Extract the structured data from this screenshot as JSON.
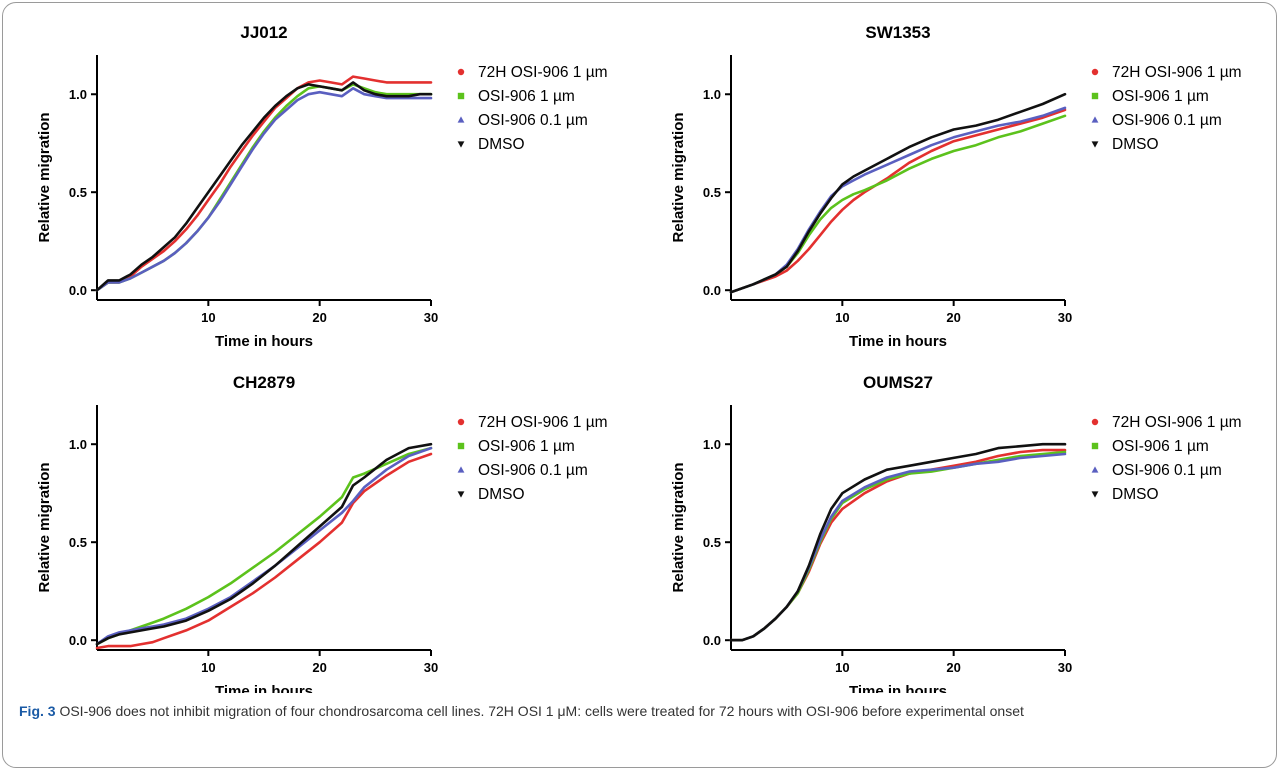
{
  "chart_data": [
    {
      "type": "line",
      "title": "JJ012",
      "xlabel": "Time in hours",
      "ylabel": "Relative migration",
      "xlim": [
        0,
        30
      ],
      "ylim": [
        -0.05,
        1.2
      ],
      "xticks": [
        10,
        20,
        30
      ],
      "xtick_labels": [
        "10",
        "20",
        "30"
      ],
      "yticks": [
        0.0,
        0.5,
        1.0
      ],
      "ytick_labels": [
        "0.0",
        "0.5",
        "1.0"
      ],
      "grid": false,
      "legend": "right",
      "series": [
        {
          "name": "72H OSI-906 1 µm",
          "color": "#e3302f",
          "marker": "circle",
          "x": [
            0,
            1,
            2,
            3,
            4,
            5,
            6,
            7,
            8,
            9,
            10,
            11,
            12,
            13,
            14,
            15,
            16,
            17,
            18,
            19,
            20,
            21,
            22,
            23,
            24,
            25,
            26,
            27,
            28,
            29,
            30
          ],
          "y": [
            0.0,
            0.04,
            0.04,
            0.07,
            0.12,
            0.16,
            0.2,
            0.25,
            0.31,
            0.38,
            0.46,
            0.54,
            0.63,
            0.71,
            0.79,
            0.86,
            0.93,
            0.98,
            1.03,
            1.06,
            1.07,
            1.06,
            1.05,
            1.09,
            1.08,
            1.07,
            1.06,
            1.06,
            1.06,
            1.06,
            1.06
          ]
        },
        {
          "name": "OSI-906 1 µm",
          "color": "#5cc21c",
          "marker": "square",
          "x": [
            0,
            1,
            2,
            3,
            4,
            5,
            6,
            7,
            8,
            9,
            10,
            11,
            12,
            13,
            14,
            15,
            16,
            17,
            18,
            19,
            20,
            21,
            22,
            23,
            24,
            25,
            26,
            27,
            28,
            29,
            30
          ],
          "y": [
            0.0,
            0.04,
            0.04,
            0.06,
            0.09,
            0.12,
            0.15,
            0.19,
            0.24,
            0.3,
            0.37,
            0.46,
            0.55,
            0.64,
            0.73,
            0.81,
            0.88,
            0.94,
            0.99,
            1.03,
            1.04,
            1.03,
            1.02,
            1.05,
            1.03,
            1.01,
            1.0,
            1.0,
            1.0,
            1.0,
            1.0
          ]
        },
        {
          "name": "OSI-906 0.1 µm",
          "color": "#5a5fc0",
          "marker": "triangle-up",
          "x": [
            0,
            1,
            2,
            3,
            4,
            5,
            6,
            7,
            8,
            9,
            10,
            11,
            12,
            13,
            14,
            15,
            16,
            17,
            18,
            19,
            20,
            21,
            22,
            23,
            24,
            25,
            26,
            27,
            28,
            29,
            30
          ],
          "y": [
            0.0,
            0.04,
            0.04,
            0.06,
            0.09,
            0.12,
            0.15,
            0.19,
            0.24,
            0.3,
            0.37,
            0.45,
            0.54,
            0.63,
            0.72,
            0.8,
            0.87,
            0.92,
            0.97,
            1.0,
            1.01,
            1.0,
            0.99,
            1.03,
            1.0,
            0.99,
            0.98,
            0.98,
            0.98,
            0.98,
            0.98
          ]
        },
        {
          "name": "DMSO",
          "color": "#111111",
          "marker": "triangle-down",
          "x": [
            0,
            1,
            2,
            3,
            4,
            5,
            6,
            7,
            8,
            9,
            10,
            11,
            12,
            13,
            14,
            15,
            16,
            17,
            18,
            19,
            20,
            21,
            22,
            23,
            24,
            25,
            26,
            27,
            28,
            29,
            30
          ],
          "y": [
            0.0,
            0.05,
            0.05,
            0.08,
            0.13,
            0.17,
            0.22,
            0.27,
            0.34,
            0.42,
            0.5,
            0.58,
            0.66,
            0.74,
            0.81,
            0.88,
            0.94,
            0.99,
            1.03,
            1.05,
            1.04,
            1.03,
            1.02,
            1.06,
            1.02,
            1.0,
            0.99,
            0.99,
            0.99,
            1.0,
            1.0
          ]
        }
      ]
    },
    {
      "type": "line",
      "title": "SW1353",
      "xlabel": "Time in hours",
      "ylabel": "Relative migration",
      "xlim": [
        0,
        30
      ],
      "ylim": [
        -0.05,
        1.2
      ],
      "xticks": [
        10,
        20,
        30
      ],
      "xtick_labels": [
        "10",
        "20",
        "30"
      ],
      "yticks": [
        0.0,
        0.5,
        1.0
      ],
      "ytick_labels": [
        "0.0",
        "0.5",
        "1.0"
      ],
      "grid": false,
      "legend": "right",
      "series": [
        {
          "name": "72H OSI-906 1 µm",
          "color": "#e3302f",
          "marker": "circle",
          "x": [
            0,
            2,
            4,
            5,
            6,
            7,
            8,
            9,
            10,
            11,
            12,
            14,
            16,
            18,
            20,
            22,
            24,
            26,
            28,
            30
          ],
          "y": [
            -0.01,
            0.03,
            0.07,
            0.1,
            0.15,
            0.21,
            0.28,
            0.35,
            0.41,
            0.46,
            0.5,
            0.57,
            0.65,
            0.71,
            0.76,
            0.79,
            0.82,
            0.85,
            0.88,
            0.92
          ]
        },
        {
          "name": "OSI-906 1 µm",
          "color": "#5cc21c",
          "marker": "square",
          "x": [
            0,
            2,
            4,
            5,
            6,
            7,
            8,
            9,
            10,
            11,
            12,
            14,
            16,
            18,
            20,
            22,
            24,
            26,
            28,
            30
          ],
          "y": [
            -0.01,
            0.03,
            0.08,
            0.12,
            0.19,
            0.28,
            0.36,
            0.42,
            0.46,
            0.49,
            0.51,
            0.56,
            0.62,
            0.67,
            0.71,
            0.74,
            0.78,
            0.81,
            0.85,
            0.89
          ]
        },
        {
          "name": "OSI-906 0.1 µm",
          "color": "#5a5fc0",
          "marker": "triangle-up",
          "x": [
            0,
            2,
            4,
            5,
            6,
            7,
            8,
            9,
            10,
            11,
            12,
            14,
            16,
            18,
            20,
            22,
            24,
            26,
            28,
            30
          ],
          "y": [
            -0.01,
            0.03,
            0.08,
            0.13,
            0.21,
            0.31,
            0.4,
            0.48,
            0.53,
            0.56,
            0.59,
            0.64,
            0.69,
            0.74,
            0.78,
            0.81,
            0.84,
            0.86,
            0.89,
            0.93
          ]
        },
        {
          "name": "DMSO",
          "color": "#111111",
          "marker": "triangle-down",
          "x": [
            0,
            2,
            4,
            5,
            6,
            7,
            8,
            9,
            10,
            11,
            12,
            14,
            16,
            18,
            20,
            22,
            24,
            26,
            28,
            30
          ],
          "y": [
            -0.01,
            0.03,
            0.08,
            0.12,
            0.2,
            0.3,
            0.39,
            0.47,
            0.54,
            0.58,
            0.61,
            0.67,
            0.73,
            0.78,
            0.82,
            0.84,
            0.87,
            0.91,
            0.95,
            1.0
          ]
        }
      ]
    },
    {
      "type": "line",
      "title": "CH2879",
      "xlabel": "Time in hours",
      "ylabel": "Relative migration",
      "xlim": [
        0,
        30
      ],
      "ylim": [
        -0.05,
        1.2
      ],
      "xticks": [
        10,
        20,
        30
      ],
      "xtick_labels": [
        "10",
        "20",
        "30"
      ],
      "yticks": [
        0.0,
        0.5,
        1.0
      ],
      "ytick_labels": [
        "0.0",
        "0.5",
        "1.0"
      ],
      "grid": false,
      "legend": "right",
      "series": [
        {
          "name": "72H OSI-906 1 µm",
          "color": "#e3302f",
          "marker": "circle",
          "x": [
            0,
            1,
            2,
            3,
            4,
            5,
            6,
            8,
            10,
            12,
            14,
            16,
            18,
            20,
            22,
            23,
            24,
            26,
            28,
            30
          ],
          "y": [
            -0.04,
            -0.03,
            -0.03,
            -0.03,
            -0.02,
            -0.01,
            0.01,
            0.05,
            0.1,
            0.17,
            0.24,
            0.32,
            0.41,
            0.5,
            0.6,
            0.7,
            0.76,
            0.84,
            0.91,
            0.95
          ]
        },
        {
          "name": "OSI-906 1 µm",
          "color": "#5cc21c",
          "marker": "square",
          "x": [
            0,
            1,
            2,
            3,
            4,
            5,
            6,
            8,
            10,
            12,
            14,
            16,
            18,
            20,
            22,
            23,
            24,
            26,
            28,
            30
          ],
          "y": [
            -0.02,
            0.01,
            0.03,
            0.05,
            0.07,
            0.09,
            0.11,
            0.16,
            0.22,
            0.29,
            0.37,
            0.45,
            0.54,
            0.63,
            0.73,
            0.83,
            0.85,
            0.9,
            0.95,
            0.98
          ]
        },
        {
          "name": "OSI-906 0.1 µm",
          "color": "#5a5fc0",
          "marker": "triangle-up",
          "x": [
            0,
            1,
            2,
            3,
            4,
            5,
            6,
            8,
            10,
            12,
            14,
            16,
            18,
            20,
            22,
            23,
            24,
            26,
            28,
            30
          ],
          "y": [
            -0.02,
            0.02,
            0.04,
            0.05,
            0.06,
            0.07,
            0.08,
            0.11,
            0.16,
            0.22,
            0.3,
            0.38,
            0.47,
            0.56,
            0.65,
            0.71,
            0.78,
            0.87,
            0.94,
            0.98
          ]
        },
        {
          "name": "DMSO",
          "color": "#111111",
          "marker": "triangle-down",
          "x": [
            0,
            1,
            2,
            3,
            4,
            5,
            6,
            8,
            10,
            12,
            14,
            16,
            18,
            20,
            22,
            23,
            24,
            26,
            28,
            30
          ],
          "y": [
            -0.02,
            0.01,
            0.03,
            0.04,
            0.05,
            0.06,
            0.07,
            0.1,
            0.15,
            0.21,
            0.29,
            0.38,
            0.48,
            0.58,
            0.68,
            0.79,
            0.83,
            0.92,
            0.98,
            1.0
          ]
        }
      ]
    },
    {
      "type": "line",
      "title": "OUMS27",
      "xlabel": "Time in hours",
      "ylabel": "Relative migration",
      "xlim": [
        0,
        30
      ],
      "ylim": [
        -0.05,
        1.2
      ],
      "xticks": [
        10,
        20,
        30
      ],
      "xtick_labels": [
        "10",
        "20",
        "30"
      ],
      "yticks": [
        0.0,
        0.5,
        1.0
      ],
      "ytick_labels": [
        "0.0",
        "0.5",
        "1.0"
      ],
      "grid": false,
      "legend": "right",
      "series": [
        {
          "name": "72H OSI-906 1 µm",
          "color": "#e3302f",
          "marker": "circle",
          "x": [
            0,
            1,
            2,
            3,
            4,
            5,
            6,
            7,
            8,
            9,
            10,
            12,
            14,
            16,
            18,
            20,
            22,
            24,
            26,
            28,
            30
          ],
          "y": [
            0.0,
            0.0,
            0.02,
            0.06,
            0.11,
            0.17,
            0.24,
            0.35,
            0.49,
            0.6,
            0.67,
            0.75,
            0.81,
            0.85,
            0.87,
            0.89,
            0.91,
            0.94,
            0.96,
            0.97,
            0.97
          ]
        },
        {
          "name": "OSI-906 1 µm",
          "color": "#5cc21c",
          "marker": "square",
          "x": [
            0,
            1,
            2,
            3,
            4,
            5,
            6,
            7,
            8,
            9,
            10,
            12,
            14,
            16,
            18,
            20,
            22,
            24,
            26,
            28,
            30
          ],
          "y": [
            0.0,
            0.0,
            0.02,
            0.06,
            0.11,
            0.17,
            0.24,
            0.36,
            0.5,
            0.62,
            0.7,
            0.77,
            0.82,
            0.85,
            0.86,
            0.88,
            0.9,
            0.92,
            0.94,
            0.95,
            0.96
          ]
        },
        {
          "name": "OSI-906 0.1 µm",
          "color": "#5a5fc0",
          "marker": "triangle-up",
          "x": [
            0,
            1,
            2,
            3,
            4,
            5,
            6,
            7,
            8,
            9,
            10,
            12,
            14,
            16,
            18,
            20,
            22,
            24,
            26,
            28,
            30
          ],
          "y": [
            0.0,
            0.0,
            0.02,
            0.06,
            0.11,
            0.17,
            0.25,
            0.37,
            0.51,
            0.63,
            0.71,
            0.78,
            0.83,
            0.86,
            0.87,
            0.88,
            0.9,
            0.91,
            0.93,
            0.94,
            0.95
          ]
        },
        {
          "name": "DMSO",
          "color": "#111111",
          "marker": "triangle-down",
          "x": [
            0,
            1,
            2,
            3,
            4,
            5,
            6,
            7,
            8,
            9,
            10,
            12,
            14,
            16,
            18,
            20,
            22,
            24,
            26,
            28,
            30
          ],
          "y": [
            0.0,
            0.0,
            0.02,
            0.06,
            0.11,
            0.17,
            0.25,
            0.38,
            0.54,
            0.67,
            0.75,
            0.82,
            0.87,
            0.89,
            0.91,
            0.93,
            0.95,
            0.98,
            0.99,
            1.0,
            1.0
          ]
        }
      ]
    }
  ],
  "caption": {
    "label": "Fig. 3",
    "text": " OSI-906 does not inhibit migration of four chondrosarcoma cell lines. 72H OSI 1 μM: cells were treated for 72 hours with OSI-906 before experimental onset"
  }
}
